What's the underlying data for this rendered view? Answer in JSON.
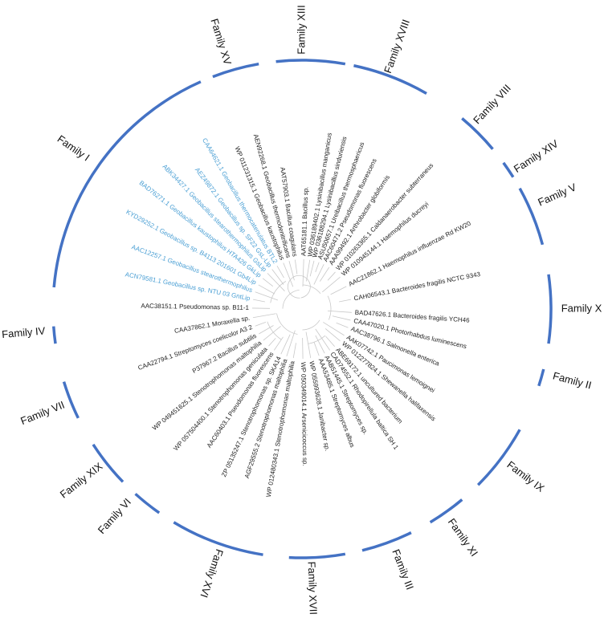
{
  "families": [
    {
      "label": "Family XIII"
    },
    {
      "label": "Family XVIII"
    },
    {
      "label": "Family VIII"
    },
    {
      "label": "Family XIV"
    },
    {
      "label": "Family V"
    },
    {
      "label": "Family X"
    },
    {
      "label": "Family II"
    },
    {
      "label": "Family IX"
    },
    {
      "label": "Family XI"
    },
    {
      "label": "Family III"
    },
    {
      "label": "Family XVII"
    },
    {
      "label": "Family XVI"
    },
    {
      "label": "Family VI"
    },
    {
      "label": "Family XIX"
    },
    {
      "label": "Family VII"
    },
    {
      "label": "Family IV"
    },
    {
      "label": "Family I"
    },
    {
      "label": "Family XV"
    }
  ],
  "leaves": [
    {
      "label": "AAT65181.1 Bacillus sp.",
      "color": "#222222"
    },
    {
      "label": "WP 036189402.1 Lysinibacillus manganicus",
      "color": "#222222"
    },
    {
      "label": "WP 036188294.1 Lysinibacillus sinduriensis",
      "color": "#222222"
    },
    {
      "label": "ASU50657.1 Ureibacillus thermosphaericus",
      "color": "#222222"
    },
    {
      "label": "AAC60471.2 Pseudomonas fluorescens",
      "color": "#222222"
    },
    {
      "label": "AAA99492.1 Arthrobacter globiformis",
      "color": "#222222"
    },
    {
      "label": "WP 010263365.1 Caldanaerobacter subterraneus",
      "color": "#222222"
    },
    {
      "label": "WP 010945144.1 Haemophilus ducreyi",
      "color": "#222222"
    },
    {
      "label": "AAC21862.1 Haemophilus influenzae Rd KW20",
      "color": "#222222"
    },
    {
      "label": "CAH06543.1 Bacteroides fragilis NCTC 9343",
      "color": "#222222"
    },
    {
      "label": "BAD47626.1 Bacteroides fragilis YCH46",
      "color": "#222222"
    },
    {
      "label": "CAA47020.1 Photorhabdus luminescens",
      "color": "#222222"
    },
    {
      "label": "AAC38796.1 Salmonella enterica",
      "color": "#222222"
    },
    {
      "label": "AAK07742.1 Paucimonas lemoignei",
      "color": "#222222"
    },
    {
      "label": "WP 012277824.1 Shewanella halifaxensis",
      "color": "#222222"
    },
    {
      "label": "ABE69172.1 uncultured bacterium",
      "color": "#222222"
    },
    {
      "label": "CAD74552.1 Rhodopirellula baltica SH 1",
      "color": "#222222"
    },
    {
      "label": "AAB51445.1 Streptomyces sp.",
      "color": "#222222"
    },
    {
      "label": "AAA53485.1 Streptomyces albus",
      "color": "#222222"
    },
    {
      "label": "WP 055993628.1 Janibacter sp.",
      "color": "#222222"
    },
    {
      "label": "WP 050349014.1 Arsenicicoccus sp.",
      "color": "#222222"
    },
    {
      "label": "WP 012480343.1 Stenotrophomonas maltophilia",
      "color": "#222222"
    },
    {
      "label": "AGF29555.2 Stenotrophomonas maltophilia",
      "color": "#222222"
    },
    {
      "label": "ZP 05135247.1 Stenotrophomonas sp. SKA14",
      "color": "#222222"
    },
    {
      "label": "AAC60403.1 Pseudomonas fluorescens",
      "color": "#222222"
    },
    {
      "label": "WP 057504400.1 Stenotrophomonas geniculata",
      "color": "#222222"
    },
    {
      "label": "WP 049451625.1 Stenotrophomonas maltophilia",
      "color": "#222222"
    },
    {
      "label": "P37967.2 Bacillus subtilis",
      "color": "#222222"
    },
    {
      "label": "CAA22794.1 Streptomyces coelicolor A3 2",
      "color": "#222222"
    },
    {
      "label": "CAA37862.1 Moraxella sp.",
      "color": "#222222"
    },
    {
      "label": "AAC38151.1 Pseudomonas sp. B11-1",
      "color": "#222222"
    },
    {
      "label": "ACN79581.1 Geobacillus sp. NTU 03 GntLip",
      "color": "#4a9fd4"
    },
    {
      "label": "AAC12257.1 Geobacillus stearothermophilus",
      "color": "#4a9fd4"
    },
    {
      "label": "KYD29252.1 Geobacillus sp. B4113 201601 Gb4Lip",
      "color": "#4a9fd4"
    },
    {
      "label": "BAD76271.1 Geobacillus kaustophilus HTA426 GkLip",
      "color": "#4a9fd4"
    },
    {
      "label": "ABK34427.1 Geobacillus stearothermophilus GsLip",
      "color": "#4a9fd4"
    },
    {
      "label": "AEZ49872.1 Geobacillus sp. SF22 GsL-Lip",
      "color": "#4a9fd4"
    },
    {
      "label": "CAA64621.1 Geobacillus thermocatenulatus BTL2",
      "color": "#4a9fd4"
    },
    {
      "label": "WP 011231315.1 Geobacillus kaustophilus",
      "color": "#222222"
    },
    {
      "label": "AEN92268.1 Geobacillus thermodenitrificans",
      "color": "#222222"
    },
    {
      "label": "AAT57903.1 Bacillus coagulans",
      "color": "#222222"
    }
  ]
}
